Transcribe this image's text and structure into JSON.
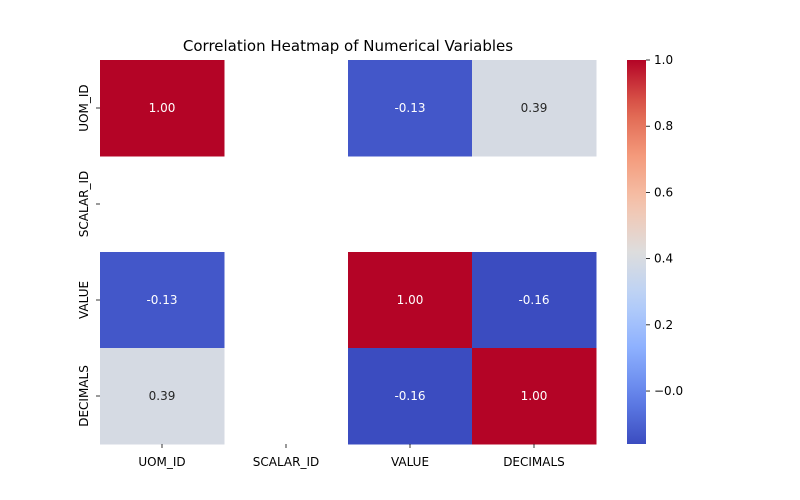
{
  "chart_data": {
    "type": "heatmap",
    "title": "Correlation Heatmap of Numerical Variables",
    "x_categories": [
      "UOM_ID",
      "SCALAR_ID",
      "VALUE",
      "DECIMALS"
    ],
    "y_categories": [
      "UOM_ID",
      "SCALAR_ID",
      "VALUE",
      "DECIMALS"
    ],
    "values": [
      [
        1.0,
        null,
        -0.13,
        0.39
      ],
      [
        null,
        null,
        null,
        null
      ],
      [
        -0.13,
        null,
        1.0,
        -0.16
      ],
      [
        0.39,
        null,
        -0.16,
        1.0
      ]
    ],
    "value_labels": [
      [
        "1.00",
        "",
        "-0.13",
        "0.39"
      ],
      [
        "",
        "",
        "",
        ""
      ],
      [
        "-0.13",
        "",
        "1.00",
        "-0.16"
      ],
      [
        "0.39",
        "",
        "-0.16",
        "1.00"
      ]
    ],
    "colormap": "coolwarm",
    "vmin": -0.16,
    "vmax": 1.0,
    "colorbar_ticks": [
      -0.0,
      0.2,
      0.4,
      0.6,
      0.8,
      1.0
    ],
    "colorbar_tick_labels": [
      "−0.0",
      "0.2",
      "0.4",
      "0.6",
      "0.8",
      "1.0"
    ],
    "grid": false,
    "legend": "colorbar-right"
  }
}
